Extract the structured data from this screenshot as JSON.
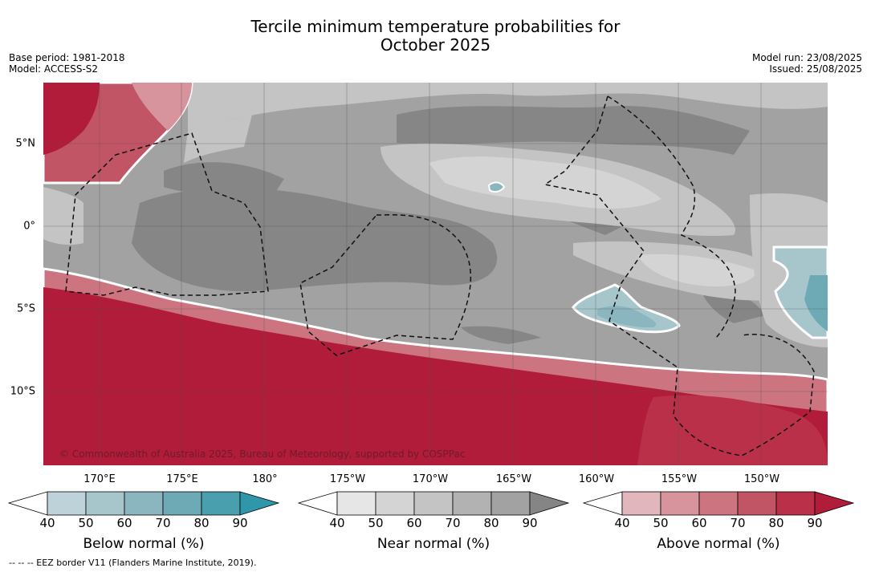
{
  "title_line1": "Tercile minimum temperature probabilities for",
  "title_line2": "October 2025",
  "meta_left": [
    "Base period: 1981-2018",
    "Model: ACCESS-S2"
  ],
  "meta_right": [
    "Model run: 23/08/2025",
    "Issued: 25/08/2025"
  ],
  "copyright": "© Commonwealth of Australia 2025, Bureau of Meteorology, supported by COSPPac",
  "footnote": "-- -- -- EEZ border V11 (Flanders Marine Institute, 2019).",
  "lon_labels": [
    "170°E",
    "175°E",
    "180°",
    "175°W",
    "170°W",
    "165°W",
    "160°W",
    "155°W",
    "150°W"
  ],
  "lat_labels": [
    "5°N",
    "0°",
    "5°S",
    "10°S"
  ],
  "colorbars": [
    {
      "title": "Below normal (%)",
      "ticks": [
        "40",
        "50",
        "60",
        "70",
        "80",
        "90"
      ],
      "colors": [
        "#bdd3d9",
        "#a7c6cc",
        "#8bb5bf",
        "#6eaab5",
        "#4a9fae"
      ],
      "extend": "#2f97a9"
    },
    {
      "title": "Near normal (%)",
      "ticks": [
        "40",
        "50",
        "60",
        "70",
        "80",
        "90"
      ],
      "colors": [
        "#e6e6e6",
        "#d4d4d4",
        "#c4c4c4",
        "#b2b2b2",
        "#a2a2a2"
      ],
      "extend": "#858585"
    },
    {
      "title": "Above normal (%)",
      "ticks": [
        "40",
        "50",
        "60",
        "70",
        "80",
        "90"
      ],
      "colors": [
        "#e1b6bc",
        "#d7949c",
        "#cc7580",
        "#c15565",
        "#b93048"
      ],
      "extend": "#b11c3a"
    }
  ]
}
